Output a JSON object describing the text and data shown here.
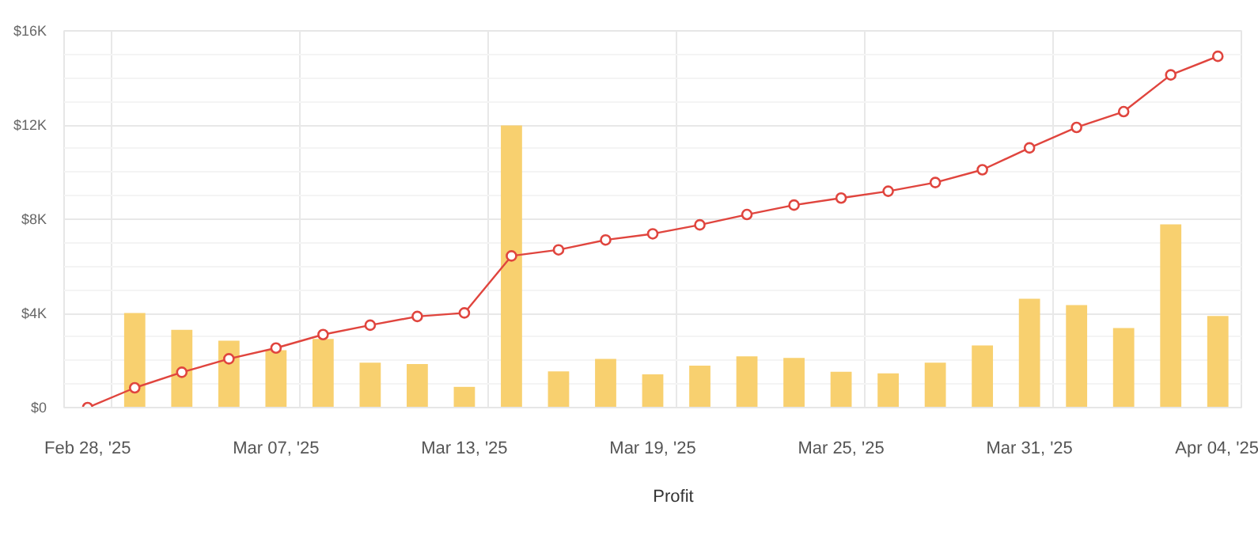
{
  "chart_data": {
    "type": "bar",
    "categories": [
      "Feb 28, '25",
      null,
      null,
      null,
      "Mar 07, '25",
      null,
      null,
      null,
      "Mar 13, '25",
      null,
      null,
      null,
      "Mar 19, '25",
      null,
      null,
      null,
      "Mar 25, '25",
      null,
      null,
      null,
      "Mar 31, '25",
      null,
      null,
      null,
      "Apr 04, '25"
    ],
    "series": [
      {
        "type": "bar",
        "color": "#f8d06f",
        "values": [
          null,
          4020,
          3300,
          2840,
          2440,
          2920,
          1910,
          1850,
          880,
          11980,
          1540,
          2070,
          1410,
          1780,
          2180,
          2110,
          1520,
          1450,
          1910,
          2640,
          4620,
          4350,
          3380,
          7780,
          3890
        ]
      },
      {
        "type": "line",
        "name": "Profit",
        "color": "#e0453e",
        "marker": "circle",
        "line_style": "solid",
        "values": [
          0,
          840,
          1500,
          2070,
          2530,
          3100,
          3500,
          3870,
          4020,
          6440,
          6700,
          7120,
          7380,
          7760,
          8200,
          8600,
          8900,
          9190,
          9560,
          10100,
          11030,
          11900,
          12570,
          14130,
          14920
        ]
      }
    ],
    "ylim": [
      0,
      16000
    ],
    "yticks": [
      {
        "value": 0,
        "label": "$0"
      },
      {
        "value": 4000,
        "label": "$4K"
      },
      {
        "value": 8000,
        "label": "$8K"
      },
      {
        "value": 12000,
        "label": "$12K"
      },
      {
        "value": 16000,
        "label": "$16K"
      }
    ],
    "grid": true,
    "legend": "bottom"
  }
}
